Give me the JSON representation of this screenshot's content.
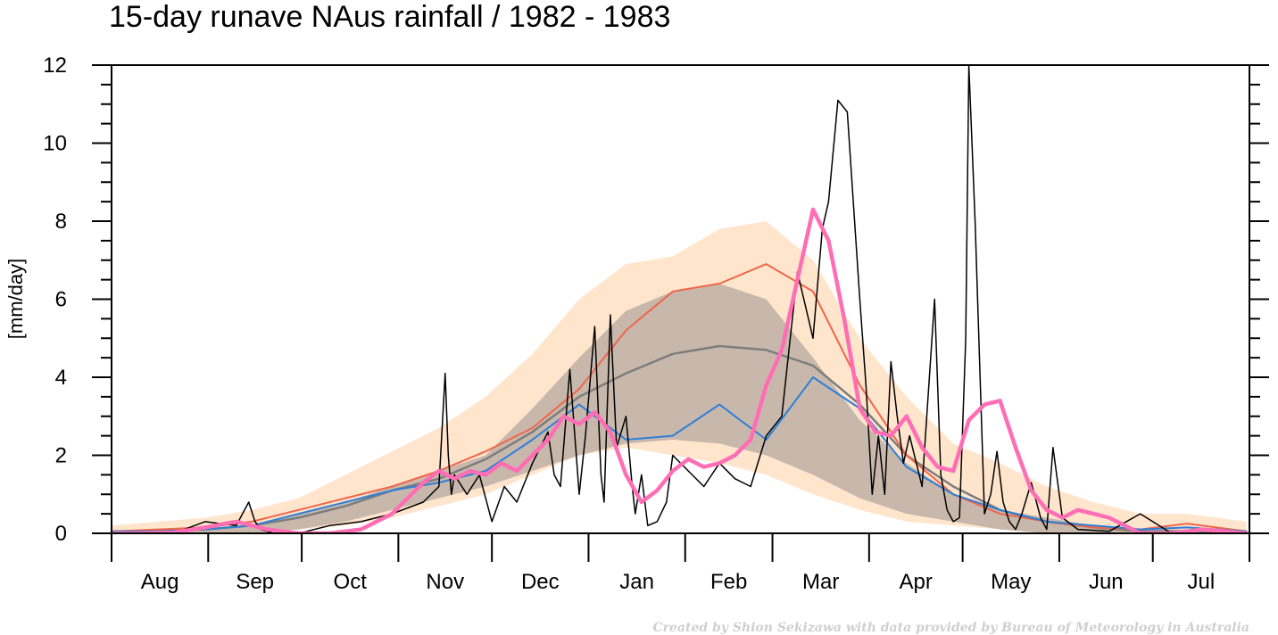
{
  "chart_data": {
    "type": "line",
    "title": "15-day runave NAus rainfall  /  1982 - 1983",
    "ylabel": "[mm/day]",
    "ylim": [
      0,
      12
    ],
    "yticks": [
      0,
      2,
      4,
      6,
      8,
      10,
      12
    ],
    "ytick_labels": [
      "0",
      "2",
      "4",
      "6",
      "8",
      "10",
      "12"
    ],
    "x_start_label": "Aug",
    "months": [
      "Aug",
      "Sep",
      "Oct",
      "Nov",
      "Dec",
      "Jan",
      "Feb",
      "Mar",
      "Apr",
      "May",
      "Jun",
      "Jul"
    ],
    "month_lengths": [
      31,
      30,
      31,
      30,
      31,
      31,
      28,
      31,
      30,
      31,
      30,
      31
    ],
    "grid": false,
    "legend": "none",
    "credit": "Created by Shion Sekizawa with data provided by Bureau of Meteorology in Australia",
    "colors": {
      "outer_band": "#ffe5cc",
      "inner_band": "#c8b8ac",
      "climatology": "#7d7d7d",
      "wet_year": "#f0664a",
      "dry_year": "#2f7fd6",
      "daily": "#000000",
      "runave": "#ff6eb4"
    },
    "series": [
      {
        "key": "outer_band",
        "kind": "band",
        "x": [
          0,
          15,
          30,
          45,
          60,
          75,
          90,
          105,
          120,
          135,
          150,
          165,
          180,
          195,
          210,
          225,
          240,
          255,
          270,
          285,
          300,
          315,
          330,
          345,
          364
        ],
        "lower": [
          0,
          0,
          0,
          0,
          0.1,
          0.2,
          0.4,
          0.7,
          1.0,
          1.5,
          2.0,
          2.2,
          2.0,
          1.8,
          1.5,
          1.0,
          0.6,
          0.3,
          0.2,
          0.1,
          0,
          0,
          0,
          0,
          0
        ],
        "upper": [
          0.2,
          0.3,
          0.4,
          0.6,
          0.9,
          1.5,
          2.1,
          2.7,
          3.5,
          4.6,
          6.0,
          6.9,
          7.1,
          7.8,
          8.0,
          7.0,
          5.0,
          3.5,
          2.3,
          1.8,
          1.2,
          0.8,
          0.5,
          0.5,
          0.3
        ]
      },
      {
        "key": "inner_band",
        "kind": "band",
        "x": [
          0,
          15,
          30,
          45,
          60,
          75,
          90,
          105,
          120,
          135,
          150,
          165,
          180,
          195,
          210,
          225,
          240,
          255,
          270,
          285,
          300,
          315,
          330,
          345,
          364
        ],
        "lower": [
          0,
          0,
          0,
          0,
          0.1,
          0.3,
          0.6,
          0.9,
          1.2,
          1.6,
          2.0,
          2.3,
          2.4,
          2.3,
          2.0,
          1.5,
          0.9,
          0.5,
          0.3,
          0.1,
          0,
          0,
          0,
          0,
          0
        ],
        "upper": [
          0,
          0,
          0.1,
          0.2,
          0.5,
          0.8,
          1.2,
          1.6,
          2.0,
          3.2,
          4.5,
          5.7,
          6.2,
          6.4,
          6.0,
          4.5,
          2.9,
          1.8,
          1.0,
          0.6,
          0.4,
          0.2,
          0.1,
          0.1,
          0
        ]
      },
      {
        "key": "climatology",
        "kind": "line",
        "x": [
          0,
          15,
          30,
          45,
          60,
          75,
          90,
          105,
          120,
          135,
          150,
          165,
          180,
          195,
          210,
          225,
          240,
          255,
          270,
          285,
          300,
          315,
          330,
          345,
          364
        ],
        "y": [
          0.05,
          0.05,
          0.1,
          0.2,
          0.4,
          0.7,
          1.1,
          1.4,
          1.9,
          2.6,
          3.5,
          4.1,
          4.6,
          4.8,
          4.7,
          4.3,
          3.3,
          2.0,
          1.2,
          0.6,
          0.3,
          0.15,
          0.05,
          0.05,
          0.05
        ]
      },
      {
        "key": "wet_year",
        "kind": "line",
        "x": [
          0,
          15,
          30,
          45,
          60,
          75,
          90,
          105,
          120,
          135,
          150,
          165,
          180,
          195,
          210,
          225,
          240,
          255,
          270,
          285,
          300,
          315,
          330,
          345,
          364
        ],
        "y": [
          0.05,
          0.1,
          0.15,
          0.3,
          0.6,
          0.9,
          1.2,
          1.6,
          2.1,
          2.7,
          3.7,
          5.2,
          6.2,
          6.4,
          6.9,
          6.2,
          3.8,
          2.0,
          1.0,
          0.5,
          0.3,
          0.15,
          0.1,
          0.25,
          0.05
        ]
      },
      {
        "key": "dry_year",
        "kind": "line",
        "x": [
          0,
          15,
          30,
          45,
          60,
          75,
          90,
          105,
          120,
          135,
          150,
          165,
          180,
          195,
          210,
          225,
          240,
          255,
          270,
          285,
          300,
          315,
          330,
          345,
          364
        ],
        "y": [
          0.05,
          0.05,
          0.1,
          0.2,
          0.5,
          0.8,
          1.1,
          1.3,
          1.6,
          2.4,
          3.3,
          2.4,
          2.5,
          3.3,
          2.4,
          4.0,
          3.2,
          1.7,
          1.0,
          0.6,
          0.3,
          0.2,
          0.1,
          0.15,
          0.05
        ]
      },
      {
        "key": "daily",
        "kind": "line",
        "x": [
          0,
          20,
          30,
          40,
          44,
          46,
          48,
          52,
          60,
          70,
          80,
          90,
          100,
          105,
          107,
          108,
          109,
          110,
          114,
          118,
          122,
          126,
          130,
          135,
          140,
          142,
          144,
          147,
          150,
          152,
          155,
          157,
          158,
          160,
          162,
          165,
          167,
          168,
          170,
          172,
          175,
          178,
          180,
          185,
          190,
          195,
          200,
          205,
          210,
          215,
          220,
          225,
          228,
          230,
          233,
          236,
          240,
          242,
          244,
          246,
          248,
          250,
          252,
          254,
          256,
          260,
          264,
          266,
          268,
          270,
          272,
          274,
          275,
          277,
          280,
          282,
          284,
          286,
          288,
          290,
          292,
          295,
          298,
          300,
          302,
          305,
          310,
          320,
          330,
          340,
          364
        ],
        "y": [
          0,
          0,
          0.3,
          0.2,
          0.8,
          0.3,
          0.1,
          0,
          0,
          0.2,
          0.3,
          0.5,
          0.8,
          1.2,
          4.1,
          2.0,
          1.0,
          1.5,
          1.0,
          1.5,
          0.3,
          1.2,
          0.8,
          1.8,
          2.6,
          1.5,
          1.2,
          4.2,
          1.0,
          2.5,
          5.3,
          1.5,
          0.8,
          5.6,
          2.2,
          3.0,
          1.2,
          0.5,
          1.5,
          0.2,
          0.3,
          0.8,
          2.0,
          1.6,
          1.2,
          1.8,
          1.4,
          1.2,
          2.5,
          3.0,
          6.7,
          5.0,
          7.8,
          8.5,
          11.1,
          10.8,
          6.0,
          3.8,
          1.0,
          2.5,
          1.0,
          4.4,
          3.0,
          1.8,
          2.5,
          1.2,
          6.0,
          1.5,
          0.6,
          0.3,
          0.4,
          5.0,
          12.0,
          8.0,
          0.5,
          1.0,
          2.1,
          0.8,
          0.3,
          0.1,
          0.5,
          1.3,
          0.4,
          0.1,
          2.2,
          0.4,
          0.1,
          0.05,
          0.5,
          0,
          0
        ]
      },
      {
        "key": "runave",
        "kind": "line",
        "x": [
          0,
          10,
          20,
          30,
          40,
          50,
          60,
          70,
          80,
          90,
          95,
          100,
          105,
          110,
          115,
          120,
          125,
          130,
          135,
          140,
          145,
          150,
          155,
          160,
          165,
          170,
          175,
          180,
          185,
          190,
          195,
          200,
          205,
          210,
          215,
          220,
          225,
          230,
          235,
          240,
          245,
          250,
          255,
          260,
          265,
          270,
          275,
          280,
          285,
          290,
          295,
          300,
          305,
          310,
          315,
          320,
          330,
          340,
          350,
          364
        ],
        "y": [
          0,
          0,
          0.02,
          0.15,
          0.3,
          0.1,
          0,
          0,
          0.1,
          0.5,
          0.9,
          1.3,
          1.6,
          1.4,
          1.6,
          1.5,
          1.8,
          1.6,
          2.0,
          2.4,
          3.0,
          2.8,
          3.1,
          2.6,
          1.5,
          0.8,
          1.1,
          1.6,
          1.9,
          1.7,
          1.8,
          2.0,
          2.4,
          3.8,
          4.7,
          6.5,
          8.3,
          7.5,
          5.5,
          3.2,
          2.6,
          2.5,
          3.0,
          2.2,
          1.7,
          1.6,
          2.9,
          3.3,
          3.4,
          2.2,
          1.1,
          0.6,
          0.4,
          0.6,
          0.5,
          0.4,
          0,
          0,
          0.1,
          0
        ]
      }
    ]
  }
}
